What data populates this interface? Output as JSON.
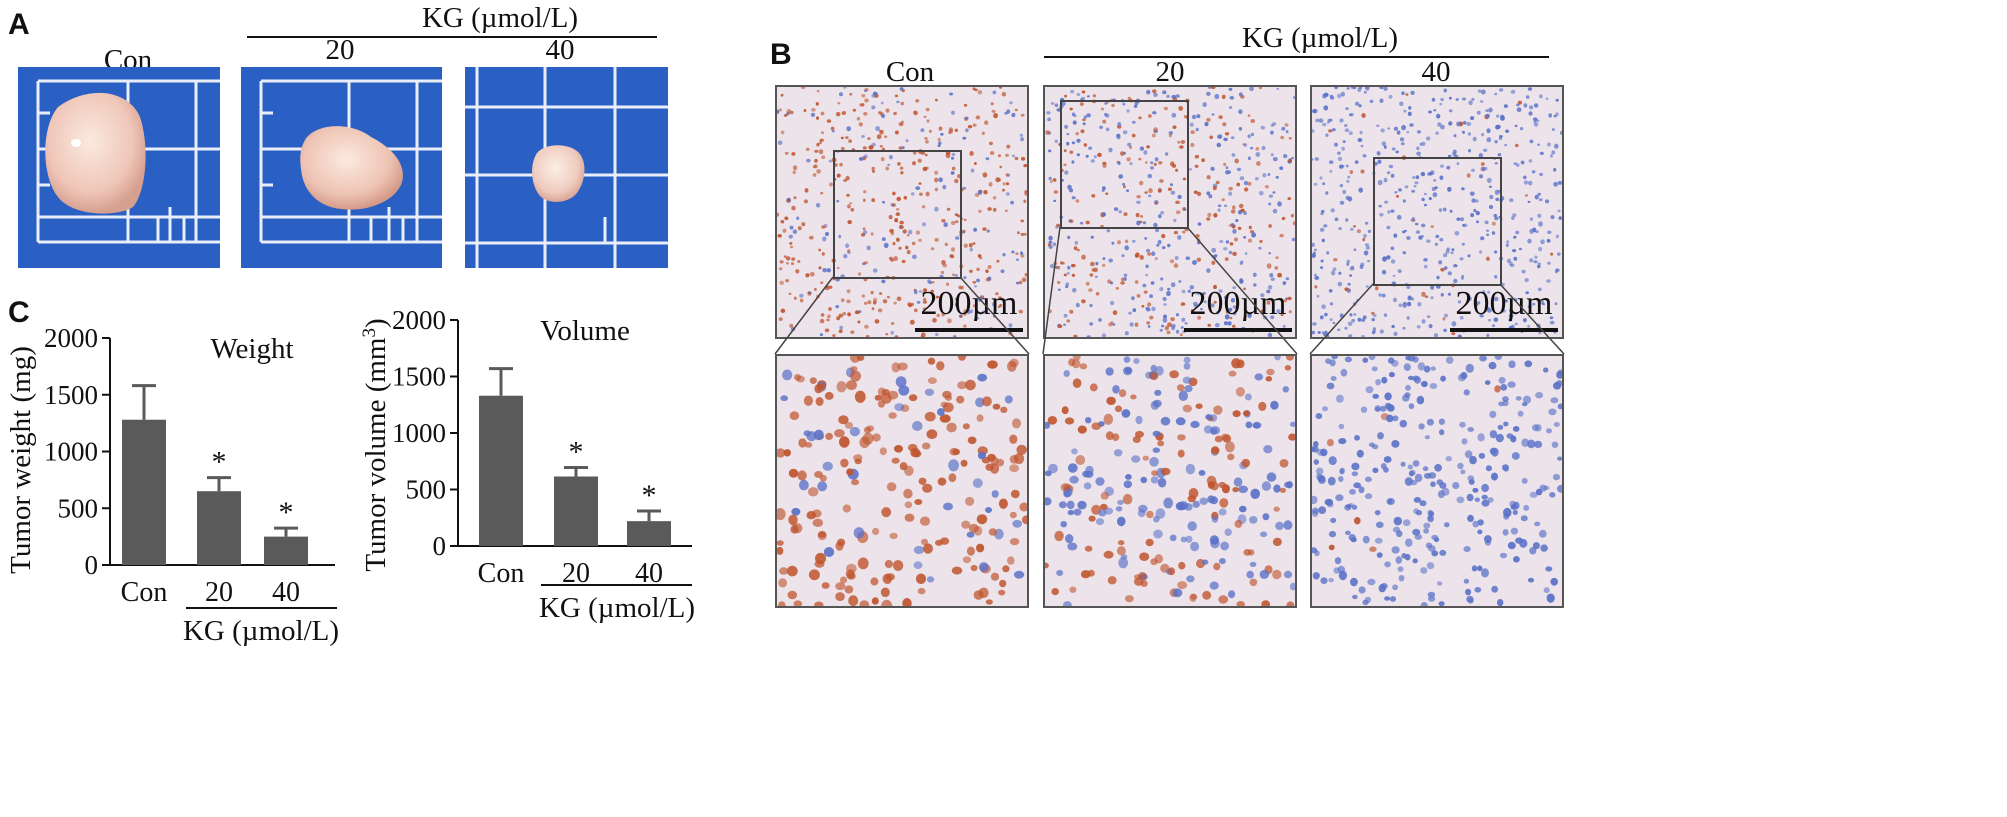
{
  "panel_a": {
    "letter": "A",
    "group_label": "KG (µmol/L)",
    "conditions": [
      "Con",
      "20",
      "40"
    ],
    "background_color": "#2a5fc4"
  },
  "panel_b": {
    "letter": "B",
    "group_label": "KG (µmol/L)",
    "conditions": [
      "Con",
      "20",
      "40"
    ],
    "scale_bar": "200µm",
    "stain_colors": {
      "positive": "#c0552f",
      "negative": "#5b72c8",
      "background": "#ece4ea"
    }
  },
  "panel_c": {
    "letter": "C",
    "group_label": "KG (µmol/L)"
  },
  "chart_data": [
    {
      "type": "bar",
      "title": "Weight",
      "ylabel": "Tumor weight (mg)",
      "xlabel": "",
      "categories": [
        "Con",
        "20",
        "40"
      ],
      "values": [
        1280,
        650,
        250
      ],
      "errors": [
        300,
        120,
        75
      ],
      "significance": [
        "",
        "*",
        "*"
      ],
      "ylim": [
        0,
        2000
      ],
      "yticks": [
        "0",
        "500",
        "1000",
        "1500",
        "2000"
      ],
      "bar_color": "#5a5a5a",
      "grid": false
    },
    {
      "type": "bar",
      "title": "Volume",
      "ylabel": "Tumor volume (mm",
      "ylabel_superscript": "3",
      "ylabel_close": ")",
      "xlabel": "",
      "categories": [
        "Con",
        "20",
        "40"
      ],
      "values": [
        1330,
        615,
        220
      ],
      "errors": [
        240,
        80,
        90
      ],
      "significance": [
        "",
        "*",
        "*"
      ],
      "ylim": [
        0,
        2000
      ],
      "yticks": [
        "0",
        "500",
        "1000",
        "1500",
        "2000"
      ],
      "bar_color": "#5a5a5a",
      "grid": false
    }
  ]
}
